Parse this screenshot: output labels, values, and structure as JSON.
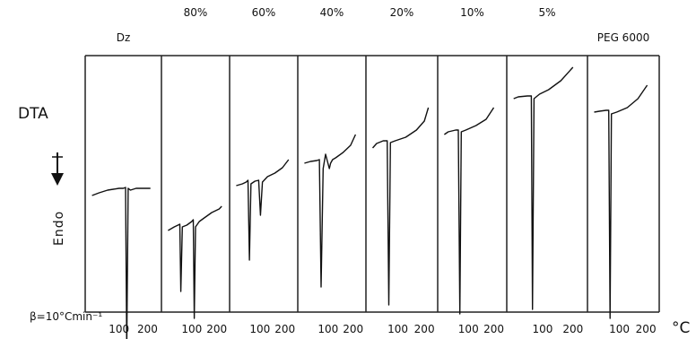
{
  "chart_data": {
    "type": "line",
    "ylabel": "DTA",
    "direction_label": "Endo",
    "rate_label": "β=10°Cmin⁻¹",
    "x_unit": "°C",
    "x_ticks": [
      100,
      200
    ],
    "xlim": [
      0,
      230
    ],
    "series": [
      {
        "name": "Dz",
        "top_label": "Dz",
        "x": [
          5,
          30,
          60,
          100,
          115,
          123,
          127,
          132,
          140,
          160,
          210
        ],
        "y": [
          58,
          55,
          52,
          50,
          50,
          49,
          230,
          50,
          52,
          50,
          50
        ]
      },
      {
        "name": "80%",
        "top_label": "80%",
        "x": [
          5,
          30,
          45,
          52,
          56,
          62,
          80,
          100,
          106,
          110,
          115,
          130,
          150,
          180,
          210,
          220
        ],
        "y": [
          82,
          78,
          76,
          75,
          150,
          78,
          76,
          72,
          70,
          180,
          78,
          72,
          68,
          62,
          58,
          55
        ]
      },
      {
        "name": "60%",
        "top_label": "60%",
        "x": [
          5,
          30,
          45,
          52,
          58,
          64,
          80,
          95,
          102,
          110,
          130,
          160,
          190,
          215
        ],
        "y": [
          62,
          60,
          58,
          56,
          145,
          60,
          57,
          56,
          95,
          58,
          52,
          48,
          42,
          33
        ]
      },
      {
        "name": "40%",
        "top_label": "40%",
        "x": [
          5,
          30,
          55,
          65,
          72,
          80,
          90,
          105,
          110,
          118,
          130,
          160,
          190,
          210
        ],
        "y": [
          42,
          40,
          39,
          38,
          180,
          48,
          32,
          48,
          42,
          38,
          36,
          30,
          22,
          10
        ]
      },
      {
        "name": "20%",
        "top_label": "20%",
        "x": [
          5,
          20,
          45,
          60,
          66,
          72,
          90,
          130,
          170,
          200,
          215
        ],
        "y": [
          30,
          25,
          22,
          22,
          205,
          24,
          22,
          18,
          10,
          0,
          -15
        ]
      },
      {
        "name": "10%",
        "top_label": "10%",
        "x": [
          5,
          20,
          50,
          60,
          66,
          72,
          90,
          130,
          170,
          200
        ],
        "y": [
          25,
          22,
          20,
          20,
          225,
          22,
          20,
          15,
          8,
          -5
        ]
      },
      {
        "name": "5%",
        "top_label": "5%",
        "x": [
          5,
          20,
          50,
          63,
          67,
          72,
          90,
          120,
          160,
          200
        ],
        "y": [
          5,
          3,
          2,
          2,
          240,
          5,
          0,
          -5,
          -15,
          -30
        ]
      },
      {
        "name": "PEG 6000",
        "top_label": "PEG 6000",
        "x": [
          5,
          25,
          50,
          60,
          65,
          70,
          90,
          130,
          170,
          205
        ],
        "y": [
          10,
          9,
          8,
          8,
          240,
          12,
          10,
          5,
          -5,
          -20
        ]
      }
    ]
  }
}
